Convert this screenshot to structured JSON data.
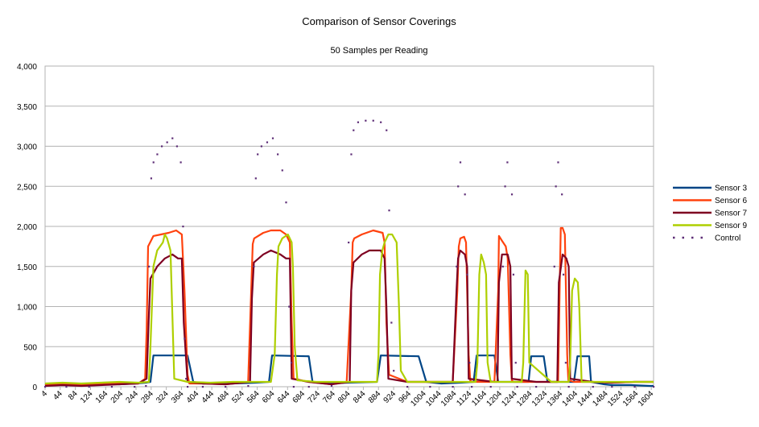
{
  "chart_data": {
    "type": "line",
    "title": "Comparison of Sensor Coverings",
    "subtitle": "50 Samples per Reading",
    "xlabel": "",
    "ylabel": "",
    "xlim": [
      4,
      1610
    ],
    "ylim": [
      0,
      4000
    ],
    "y_ticks": [
      0,
      500,
      1000,
      1500,
      2000,
      2500,
      3000,
      3500,
      4000
    ],
    "y_tick_labels": [
      "0",
      "500",
      "1,000",
      "1,500",
      "2,000",
      "2,500",
      "3,000",
      "3,500",
      "4,000"
    ],
    "x_ticks": [
      4,
      44,
      84,
      124,
      164,
      204,
      244,
      284,
      324,
      364,
      404,
      444,
      484,
      524,
      564,
      604,
      644,
      684,
      724,
      764,
      804,
      844,
      884,
      924,
      964,
      1004,
      1044,
      1084,
      1124,
      1164,
      1204,
      1244,
      1284,
      1324,
      1364,
      1404,
      1444,
      1484,
      1524,
      1564,
      1604
    ],
    "x_tick_labels": [
      "4",
      "44",
      "84",
      "124",
      "164",
      "204",
      "244",
      "284",
      "324",
      "364",
      "404",
      "444",
      "484",
      "524",
      "564",
      "604",
      "644",
      "684",
      "724",
      "764",
      "804",
      "844",
      "884",
      "924",
      "964",
      "1004",
      "1044",
      "1084",
      "1124",
      "1164",
      "1204",
      "1244",
      "1284",
      "1324",
      "1364",
      "1404",
      "1444",
      "1484",
      "1524",
      "1564",
      "1604"
    ],
    "grid": true,
    "legend_position": "right",
    "series": [
      {
        "name": "Sensor 3",
        "color": "#004586",
        "style": "solid",
        "x": [
          4,
          40,
          80,
          120,
          160,
          200,
          240,
          270,
          282,
          290,
          380,
          395,
          420,
          500,
          560,
          595,
          603,
          700,
          710,
          750,
          800,
          880,
          890,
          990,
          1010,
          1050,
          1100,
          1135,
          1143,
          1190,
          1200,
          1250,
          1280,
          1287,
          1320,
          1330,
          1380,
          1400,
          1409,
          1440,
          1445,
          1480,
          1500,
          1550,
          1600,
          1610
        ],
        "y": [
          20,
          35,
          40,
          30,
          40,
          30,
          40,
          50,
          60,
          390,
          390,
          60,
          40,
          40,
          50,
          60,
          390,
          380,
          60,
          40,
          50,
          60,
          390,
          380,
          60,
          40,
          50,
          60,
          390,
          390,
          60,
          60,
          60,
          380,
          380,
          60,
          60,
          60,
          380,
          380,
          60,
          30,
          20,
          20,
          10,
          10
        ]
      },
      {
        "name": "Sensor 6",
        "color": "#ff420e",
        "style": "solid",
        "x": [
          4,
          50,
          100,
          150,
          200,
          250,
          268,
          272,
          276,
          290,
          310,
          330,
          350,
          365,
          372,
          380,
          385,
          420,
          480,
          540,
          548,
          552,
          556,
          580,
          600,
          625,
          640,
          650,
          655,
          660,
          700,
          760,
          800,
          812,
          816,
          820,
          840,
          870,
          895,
          900,
          905,
          912,
          960,
          1020,
          1080,
          1092,
          1096,
          1100,
          1110,
          1115,
          1122,
          1126,
          1130,
          1190,
          1200,
          1202,
          1210,
          1220,
          1225,
          1232,
          1236,
          1240,
          1300,
          1358,
          1362,
          1365,
          1370,
          1376,
          1382,
          1385,
          1400,
          1450,
          1500,
          1560,
          1610
        ],
        "y": [
          20,
          30,
          20,
          30,
          40,
          40,
          100,
          700,
          1750,
          1880,
          1900,
          1920,
          1950,
          1900,
          1200,
          150,
          40,
          40,
          30,
          60,
          1200,
          1780,
          1850,
          1920,
          1950,
          1950,
          1900,
          1800,
          800,
          100,
          60,
          30,
          60,
          1200,
          1800,
          1850,
          1900,
          1950,
          1920,
          1800,
          800,
          150,
          60,
          60,
          60,
          1200,
          1750,
          1850,
          1870,
          1800,
          400,
          80,
          60,
          60,
          1200,
          1880,
          1820,
          1750,
          1600,
          400,
          80,
          60,
          60,
          60,
          1200,
          1980,
          1980,
          1900,
          400,
          80,
          60,
          60,
          50,
          60,
          60
        ]
      },
      {
        "name": "Sensor 7",
        "color": "#7e0021",
        "style": "solid",
        "x": [
          4,
          50,
          100,
          150,
          200,
          250,
          272,
          278,
          282,
          300,
          320,
          340,
          355,
          365,
          370,
          380,
          420,
          480,
          545,
          550,
          555,
          580,
          600,
          625,
          640,
          650,
          655,
          700,
          760,
          808,
          812,
          818,
          840,
          860,
          890,
          900,
          905,
          910,
          960,
          1020,
          1080,
          1090,
          1094,
          1100,
          1112,
          1118,
          1122,
          1190,
          1198,
          1202,
          1210,
          1225,
          1232,
          1236,
          1300,
          1356,
          1360,
          1370,
          1380,
          1386,
          1390,
          1450,
          1500,
          1560,
          1610
        ],
        "y": [
          10,
          20,
          10,
          20,
          30,
          40,
          100,
          900,
          1350,
          1500,
          1600,
          1650,
          1600,
          1600,
          800,
          60,
          40,
          30,
          60,
          1100,
          1550,
          1650,
          1700,
          1650,
          1600,
          1600,
          100,
          60,
          30,
          60,
          1200,
          1550,
          1650,
          1700,
          1700,
          1600,
          1000,
          100,
          60,
          60,
          60,
          1200,
          1600,
          1700,
          1650,
          1500,
          100,
          60,
          60,
          1300,
          1650,
          1650,
          1500,
          100,
          60,
          60,
          1300,
          1650,
          1600,
          1500,
          100,
          60,
          50,
          60,
          60
        ]
      },
      {
        "name": "Sensor 9",
        "color": "#aecf00",
        "style": "solid",
        "x": [
          4,
          50,
          100,
          150,
          200,
          250,
          278,
          282,
          290,
          300,
          315,
          320,
          326,
          335,
          345,
          380,
          440,
          500,
          560,
          600,
          610,
          616,
          620,
          630,
          645,
          655,
          658,
          663,
          670,
          720,
          780,
          840,
          880,
          884,
          888,
          894,
          900,
          910,
          920,
          932,
          938,
          943,
          960,
          1020,
          1080,
          1140,
          1145,
          1150,
          1155,
          1162,
          1168,
          1172,
          1180,
          1240,
          1262,
          1266,
          1272,
          1278,
          1282,
          1340,
          1386,
          1390,
          1395,
          1402,
          1410,
          1414,
          1420,
          1500,
          1560,
          1610
        ],
        "y": [
          40,
          50,
          40,
          50,
          60,
          50,
          60,
          500,
          1500,
          1700,
          1800,
          1900,
          1850,
          1700,
          100,
          60,
          50,
          60,
          60,
          60,
          400,
          1400,
          1750,
          1850,
          1900,
          1800,
          1500,
          500,
          80,
          60,
          60,
          60,
          60,
          400,
          1400,
          1700,
          1800,
          1900,
          1900,
          1800,
          1000,
          200,
          60,
          60,
          60,
          60,
          300,
          1400,
          1650,
          1550,
          1400,
          300,
          60,
          60,
          60,
          300,
          1450,
          1400,
          300,
          60,
          60,
          300,
          1200,
          1350,
          1300,
          1000,
          60,
          60,
          60,
          60
        ]
      },
      {
        "name": "Control",
        "color": "#5e2e77",
        "style": "dotted",
        "x": [
          4,
          60,
          120,
          180,
          240,
          270,
          278,
          284,
          290,
          300,
          312,
          326,
          340,
          352,
          362,
          368,
          372,
          376,
          380,
          420,
          480,
          540,
          555,
          560,
          565,
          575,
          590,
          605,
          618,
          630,
          640,
          648,
          654,
          660,
          700,
          760,
          805,
          812,
          818,
          830,
          850,
          870,
          890,
          905,
          912,
          918,
          924,
          960,
          1020,
          1080,
          1090,
          1094,
          1100,
          1112,
          1118,
          1124,
          1130,
          1180,
          1212,
          1218,
          1224,
          1236,
          1240,
          1246,
          1250,
          1300,
          1348,
          1352,
          1358,
          1368,
          1372,
          1378,
          1386,
          1450,
          1500,
          1560,
          1610
        ],
        "y": [
          0,
          0,
          0,
          0,
          0,
          10,
          1500,
          2600,
          2800,
          2900,
          3000,
          3050,
          3100,
          3000,
          2800,
          2000,
          600,
          100,
          0,
          0,
          0,
          10,
          1500,
          2600,
          2900,
          3000,
          3050,
          3100,
          2900,
          2700,
          2300,
          1000,
          300,
          0,
          0,
          10,
          1800,
          2900,
          3200,
          3300,
          3320,
          3320,
          3300,
          3200,
          2200,
          800,
          200,
          0,
          0,
          0,
          1500,
          2500,
          2800,
          2400,
          1400,
          300,
          0,
          0,
          1500,
          2500,
          2800,
          2400,
          1400,
          300,
          0,
          0,
          1500,
          2500,
          2800,
          2400,
          1400,
          300,
          0,
          0,
          0,
          0,
          0
        ]
      }
    ]
  }
}
